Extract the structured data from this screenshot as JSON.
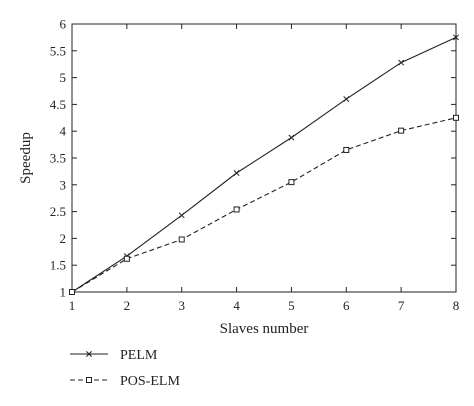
{
  "chart_data": {
    "type": "line",
    "xlabel": "Slaves number",
    "ylabel": "Speedup",
    "xlim": [
      1,
      8
    ],
    "ylim": [
      1,
      6
    ],
    "x_ticks": [
      "1",
      "2",
      "3",
      "4",
      "5",
      "6",
      "7",
      "8"
    ],
    "y_ticks": [
      "1",
      "1.5",
      "2",
      "2.5",
      "3",
      "3.5",
      "4",
      "4.5",
      "5",
      "5.5",
      "6"
    ],
    "grid": false,
    "legend_position": "bottom-left, below plot",
    "x": [
      1,
      2,
      3,
      4,
      5,
      6,
      7,
      8
    ],
    "series": [
      {
        "name": "PELM",
        "values": [
          1.0,
          1.67,
          2.43,
          3.22,
          3.88,
          4.6,
          5.28,
          5.75
        ],
        "line_style": "solid",
        "marker": "x",
        "color": "#222222"
      },
      {
        "name": "POS-ELM",
        "values": [
          1.0,
          1.62,
          1.98,
          2.54,
          3.05,
          3.65,
          4.01,
          4.25
        ],
        "line_style": "dashed",
        "marker": "square",
        "color": "#222222"
      }
    ]
  }
}
